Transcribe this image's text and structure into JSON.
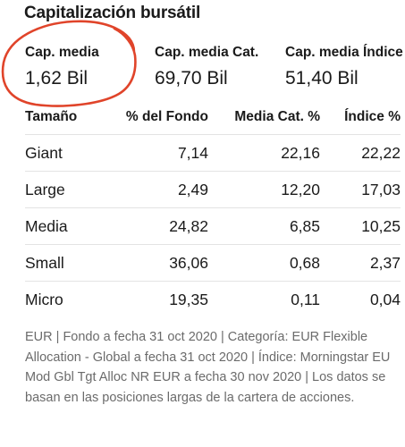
{
  "section": {
    "title": "Capitalización bursátil"
  },
  "stats": [
    {
      "label": "Cap. media",
      "value": "1,62 Bil"
    },
    {
      "label": "Cap. media Cat.",
      "value": "69,70 Bil"
    },
    {
      "label": "Cap. media Índice",
      "value": "51,40 Bil"
    }
  ],
  "annotation": {
    "color": "#e0442a"
  },
  "table": {
    "headers": [
      "Tamaño",
      "% del Fondo",
      "Media Cat. %",
      "Índice %"
    ],
    "rows": [
      [
        "Giant",
        "7,14",
        "22,16",
        "22,22"
      ],
      [
        "Large",
        "2,49",
        "12,20",
        "17,03"
      ],
      [
        "Media",
        "24,82",
        "6,85",
        "10,25"
      ],
      [
        "Small",
        "36,06",
        "0,68",
        "2,37"
      ],
      [
        "Micro",
        "19,35",
        "0,11",
        "0,04"
      ]
    ]
  },
  "footnote": "EUR | Fondo a fecha 31 oct 2020 | Categoría: EUR Flexible Allocation - Global a fecha 31 oct 2020 | Índice: Morningstar EU Mod Gbl Tgt Alloc NR EUR a fecha 30 nov 2020 | Los datos se basan en las posiciones largas de la cartera de acciones."
}
